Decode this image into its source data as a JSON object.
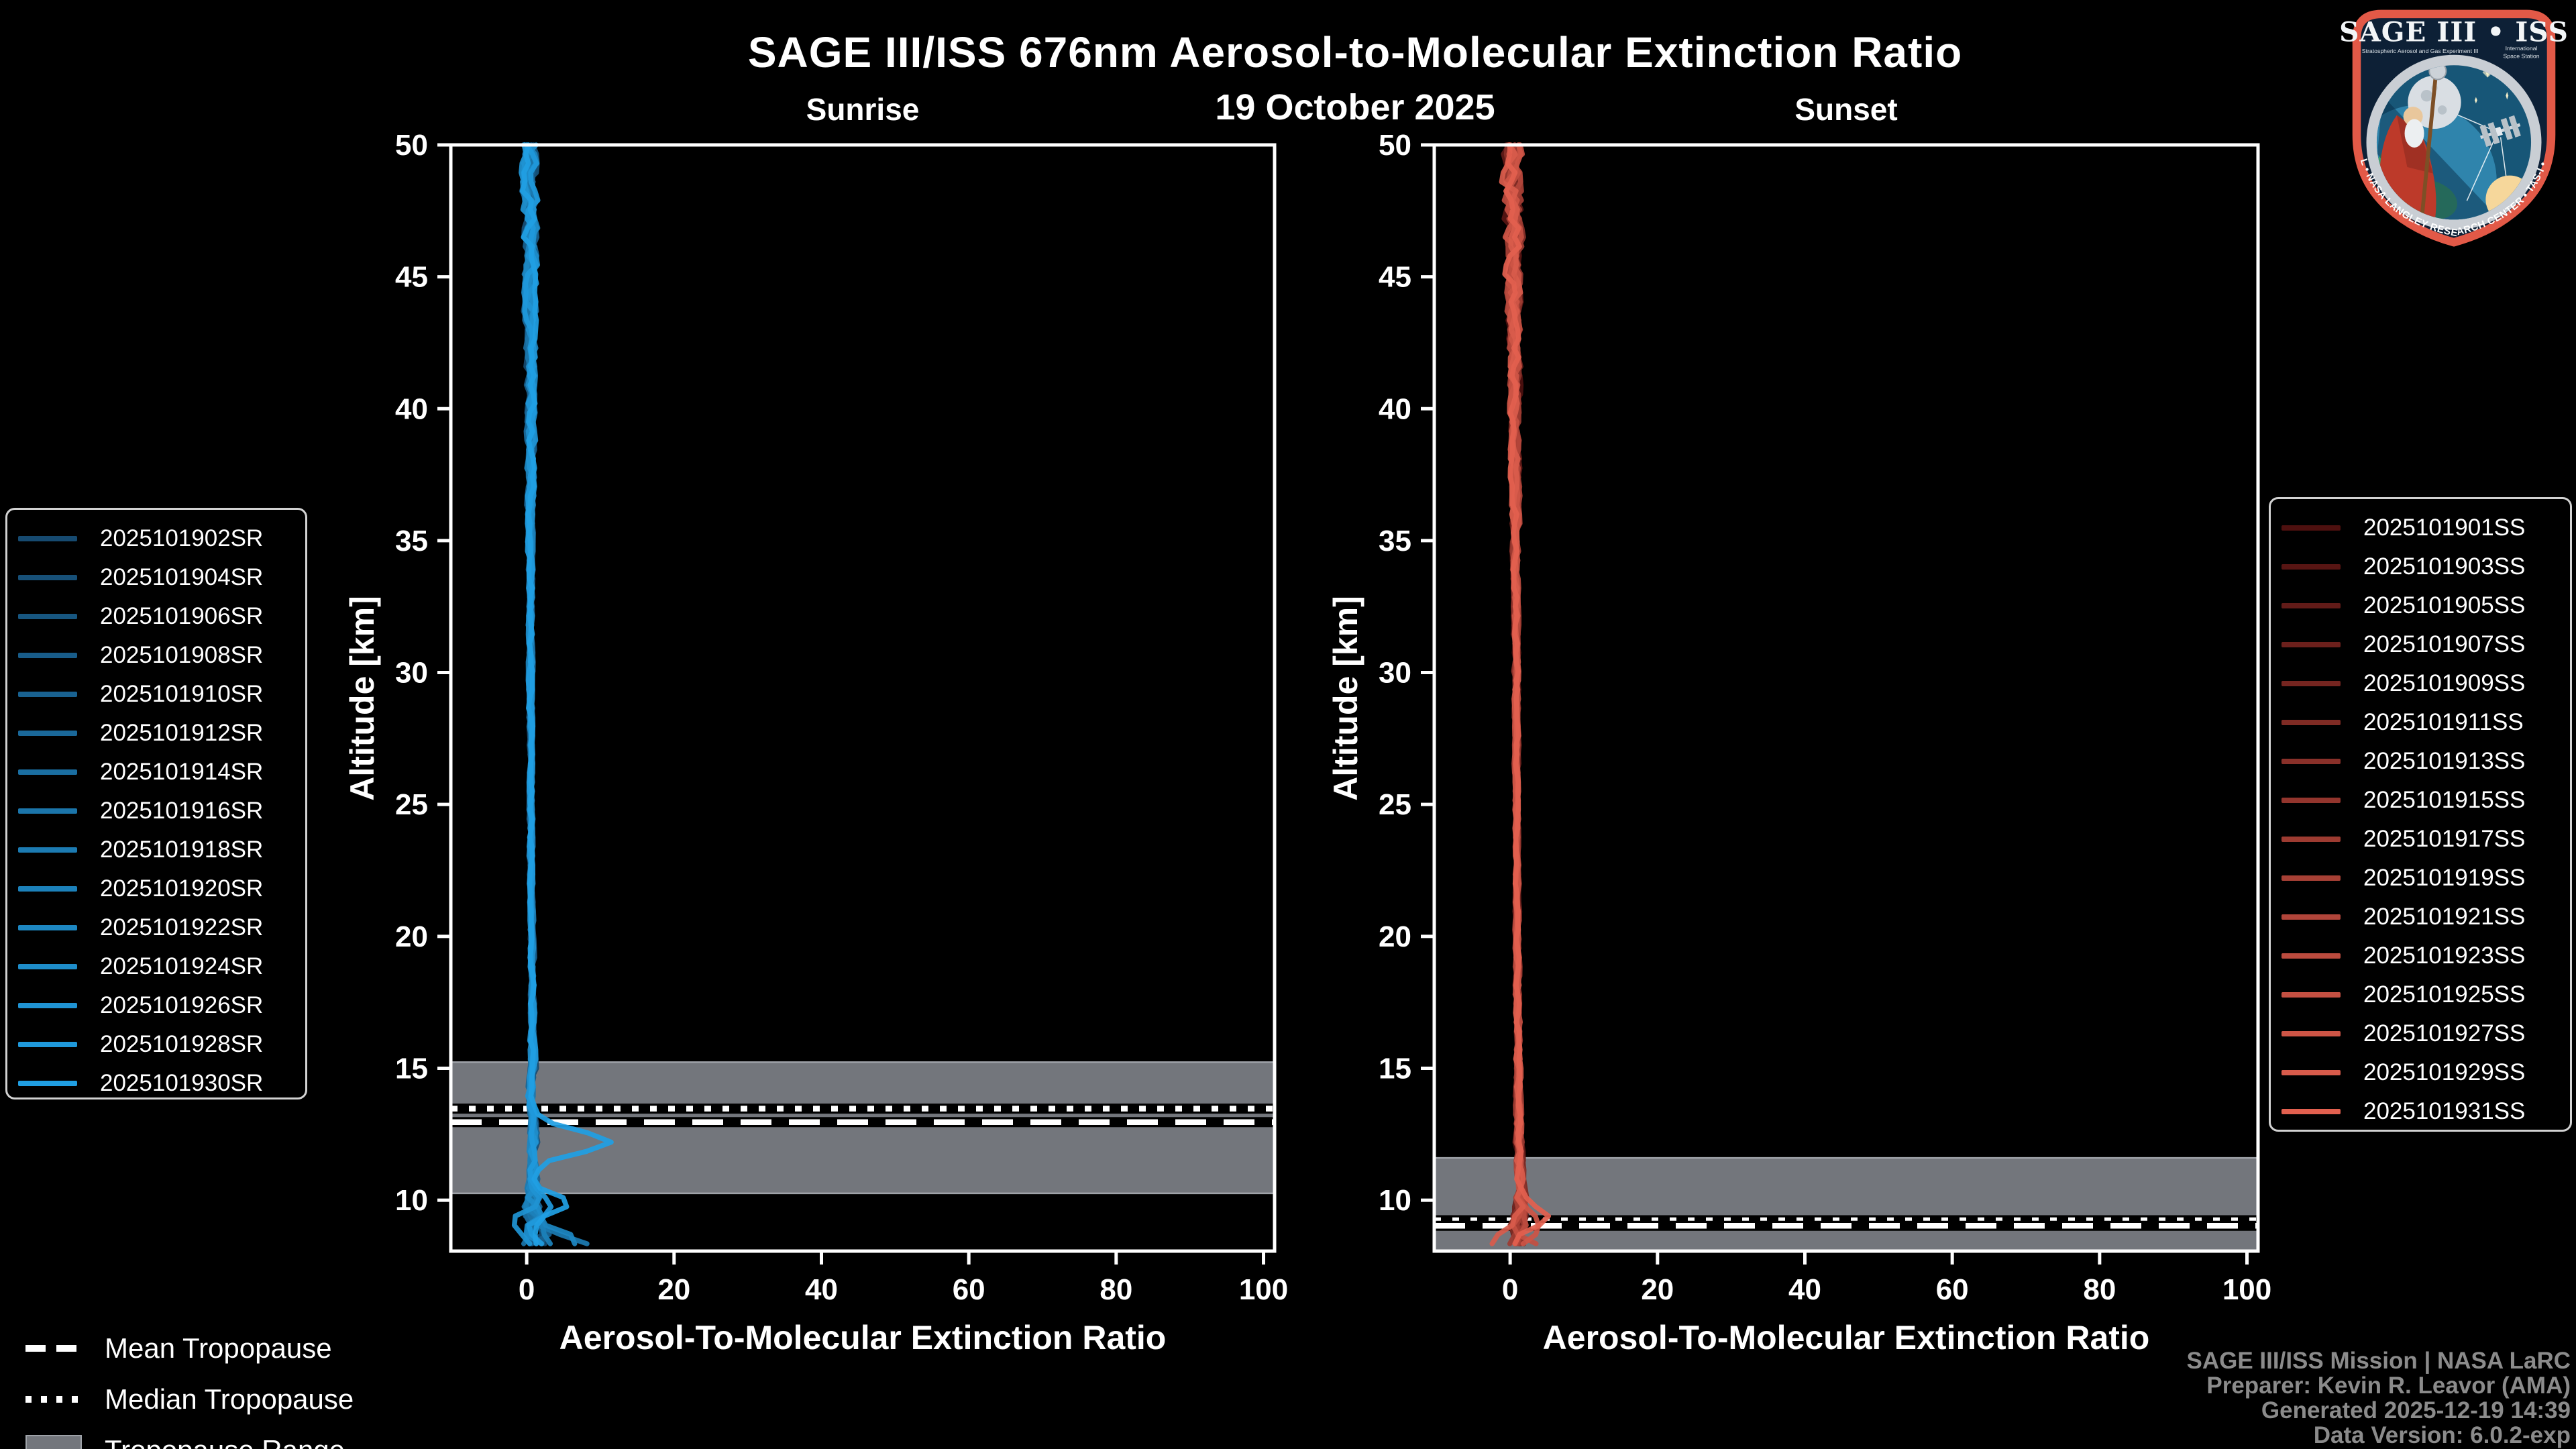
{
  "title": "SAGE III/ISS 676nm Aerosol-to-Molecular Extinction Ratio",
  "subtitle": "19 October 2025",
  "attribution": {
    "line1": "SAGE III/ISS Mission | NASA LaRC",
    "line2": "Preparer: Kevin R. Leavor (AMA)",
    "line3": "Generated 2025-12-19 14:39",
    "line4": "Data Version: 6.0.2-exp"
  },
  "tropopause_legend": {
    "mean_label": "Mean Tropopause",
    "median_label": "Median Tropopause",
    "range_label": "Tropopause Range"
  },
  "logo": {
    "title": "SAGE III • ISS",
    "subtitle_left": "Stratospheric Aerosol and Gas Experiment III",
    "subtitle_right_1": "International",
    "subtitle_right_2": "Space Station",
    "ring_text": "BALL • NASA LANGLEY RESEARCH CENTER • TAS-I • ESA"
  },
  "styles": {
    "background": "#000000",
    "band_color": "#73767c",
    "band_edge_color": "#9fa3a9",
    "frame_color": "#ffffff",
    "tick_label_color": "#ffffff",
    "attribution_color": "#8b8b8b",
    "legend_border_color": "#d2d2d2"
  },
  "chart_data": [
    {
      "type": "line",
      "panel": "sunrise",
      "title": "Sunrise",
      "xlabel": "Aerosol-To-Molecular Extinction Ratio",
      "ylabel": "Altitude [km]",
      "xlim": [
        -10.3,
        101.5
      ],
      "ylim": [
        8.07,
        50
      ],
      "x_ticks": [
        0,
        20,
        40,
        60,
        80,
        100
      ],
      "y_ticks": [
        10,
        15,
        20,
        25,
        30,
        35,
        40,
        45,
        50
      ],
      "grid": false,
      "legend_position": "outside-left",
      "series": [
        "2025101902SR",
        "2025101904SR",
        "2025101906SR",
        "2025101908SR",
        "2025101910SR",
        "2025101912SR",
        "2025101914SR",
        "2025101916SR",
        "2025101918SR",
        "2025101920SR",
        "2025101922SR",
        "2025101924SR",
        "2025101926SR",
        "2025101928SR",
        "2025101930SR"
      ],
      "colors": {
        "start": "#164a70",
        "end": "#209fe3"
      },
      "tropopause": {
        "range": [
          10.26,
          15.23
        ],
        "mean": 12.96,
        "median": 13.47
      },
      "base_profile": [
        [
          50,
          0.4
        ],
        [
          40,
          0.55
        ],
        [
          30,
          0.55
        ],
        [
          22,
          0.6
        ],
        [
          18,
          0.75
        ],
        [
          15,
          0.8
        ],
        [
          13.8,
          0.5
        ],
        [
          12.8,
          0.9
        ],
        [
          12,
          0.9
        ],
        [
          11,
          0.7
        ],
        [
          10.3,
          1.0
        ],
        [
          9.5,
          0.8
        ],
        [
          8.8,
          1.2
        ],
        [
          8.1,
          1.5
        ]
      ],
      "noise_sd": [
        [
          50,
          0.9
        ],
        [
          46,
          0.75
        ],
        [
          40,
          0.5
        ],
        [
          34,
          0.32
        ],
        [
          26,
          0.22
        ],
        [
          20,
          0.22
        ],
        [
          16,
          0.3
        ],
        [
          13,
          0.4
        ],
        [
          11.5,
          0.55
        ],
        [
          10.3,
          0.8
        ],
        [
          9.3,
          1.2
        ],
        [
          8.1,
          1.5
        ]
      ],
      "features": [
        {
          "series": 14,
          "alt": 12.2,
          "peak": 10.8,
          "width": 0.62
        },
        {
          "series": 14,
          "alt": 9.9,
          "peak": 3.8,
          "width": 0.5
        },
        {
          "series": 12,
          "alt": 9.15,
          "peak": -3.4,
          "width": 0.38
        },
        {
          "series": 10,
          "alt": 8.45,
          "peak": 5.5,
          "width": 0.5
        },
        {
          "series": 8,
          "alt": 8.25,
          "peak": 7.0,
          "width": 0.55
        },
        {
          "series": 13,
          "alt": 9.6,
          "peak": 2.8,
          "width": 0.45
        },
        {
          "series": 11,
          "alt": 8.7,
          "peak": -2.2,
          "width": 0.4
        }
      ]
    },
    {
      "type": "line",
      "panel": "sunset",
      "title": "Sunset",
      "xlabel": "Aerosol-To-Molecular Extinction Ratio",
      "ylabel": "Altitude [km]",
      "xlim": [
        -10.3,
        101.5
      ],
      "ylim": [
        8.07,
        50
      ],
      "x_ticks": [
        0,
        20,
        40,
        60,
        80,
        100
      ],
      "y_ticks": [
        10,
        15,
        20,
        25,
        30,
        35,
        40,
        45,
        50
      ],
      "grid": false,
      "legend_position": "outside-right",
      "series": [
        "2025101901SS",
        "2025101903SS",
        "2025101905SS",
        "2025101907SS",
        "2025101909SS",
        "2025101911SS",
        "2025101913SS",
        "2025101915SS",
        "2025101917SS",
        "2025101919SS",
        "2025101921SS",
        "2025101923SS",
        "2025101925SS",
        "2025101927SS",
        "2025101929SS",
        "2025101931SS"
      ],
      "colors": {
        "start": "#4e100f",
        "end": "#e2604f"
      },
      "tropopause": {
        "range": [
          8.07,
          11.6
        ],
        "mean": 9.03,
        "median": 9.24
      },
      "base_profile": [
        [
          50,
          0.3
        ],
        [
          42,
          0.6
        ],
        [
          32,
          0.8
        ],
        [
          24,
          0.9
        ],
        [
          18,
          1.0
        ],
        [
          14,
          1.1
        ],
        [
          12,
          1.2
        ],
        [
          10.5,
          1.3
        ],
        [
          9.6,
          1.2
        ],
        [
          8.9,
          1.0
        ],
        [
          8.1,
          1.1
        ]
      ],
      "noise_sd": [
        [
          50,
          1.1
        ],
        [
          46,
          0.9
        ],
        [
          40,
          0.55
        ],
        [
          32,
          0.3
        ],
        [
          24,
          0.22
        ],
        [
          18,
          0.28
        ],
        [
          14,
          0.32
        ],
        [
          12,
          0.4
        ],
        [
          10.5,
          0.5
        ],
        [
          9.5,
          0.8
        ],
        [
          8.1,
          1.0
        ]
      ],
      "features": [
        {
          "series": 15,
          "alt": 9.35,
          "peak": 4.6,
          "width": 0.45
        },
        {
          "series": 13,
          "alt": 8.95,
          "peak": 3.0,
          "width": 0.5
        },
        {
          "series": 14,
          "alt": 8.5,
          "peak": -2.8,
          "width": 0.42
        },
        {
          "series": 12,
          "alt": 8.25,
          "peak": 2.2,
          "width": 0.4
        }
      ]
    }
  ]
}
